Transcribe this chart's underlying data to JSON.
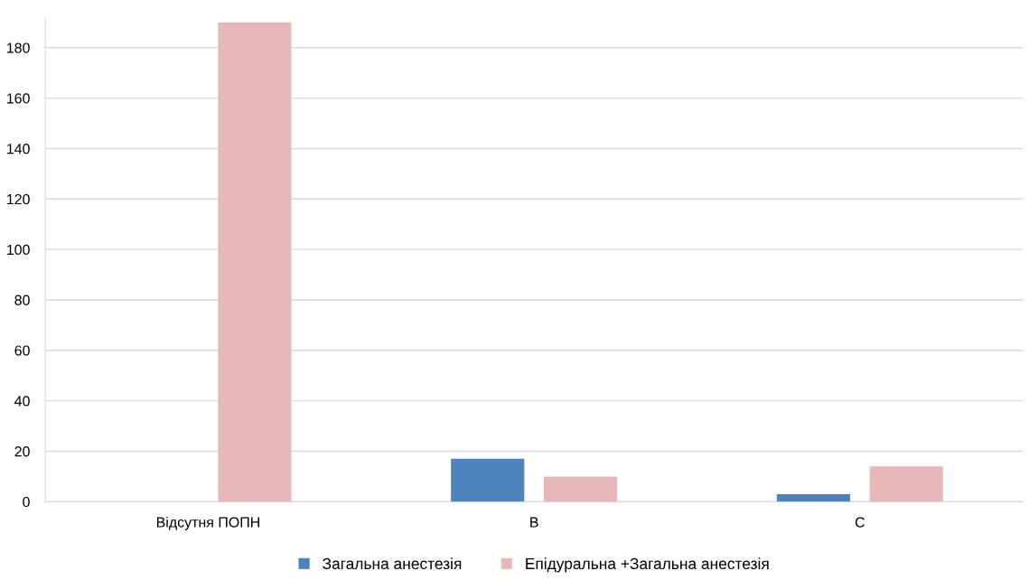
{
  "chart_data": {
    "type": "bar",
    "categories": [
      "Відсутня ПОПН",
      "B",
      "C"
    ],
    "series": [
      {
        "name": "Загальна анестезія",
        "color": "#4f81bd",
        "values": [
          0,
          17,
          3
        ]
      },
      {
        "name": "Епідуральна +Загальна анестезія",
        "color": "#e6b9b8",
        "values": [
          190,
          10,
          14
        ]
      }
    ],
    "ylim": [
      0,
      192
    ],
    "yticks": [
      0,
      20,
      40,
      60,
      80,
      100,
      120,
      140,
      160,
      180
    ],
    "grid": "y",
    "legend": "bottom"
  }
}
